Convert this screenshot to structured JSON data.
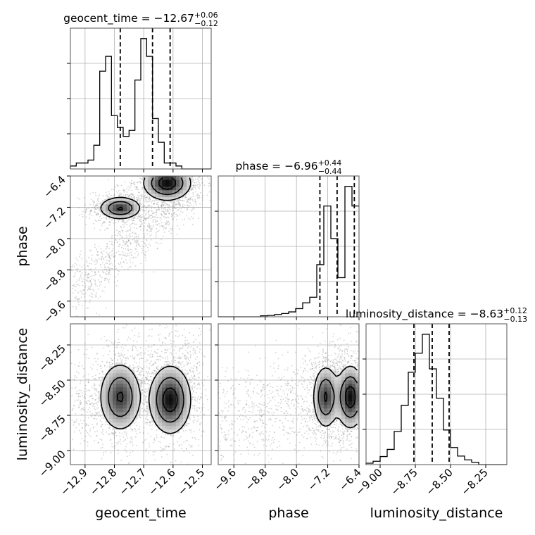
{
  "chart_data": {
    "type": "corner",
    "parameters": [
      {
        "name": "geocent_time",
        "axis_label": "geocent_time",
        "range": [
          -12.95,
          -12.47
        ],
        "ticks": [
          -12.9,
          -12.8,
          -12.7,
          -12.6,
          -12.5
        ],
        "tick_labels": [
          "−12.9",
          "−12.8",
          "−12.7",
          "−12.6",
          "−12.5"
        ],
        "title": {
          "prefix": "geocent_time = ",
          "value": "−12.67",
          "upper": "+0.06",
          "lower": "−0.12"
        },
        "quantiles": [
          -12.78,
          -12.67,
          -12.61
        ],
        "hist": {
          "edges_start": -12.95,
          "bin_width": 0.02,
          "counts": [
            1,
            2,
            2,
            3,
            8,
            33,
            38,
            18,
            14,
            11,
            13,
            30,
            44,
            38,
            17,
            9,
            2,
            2,
            1,
            0,
            0,
            0,
            0,
            0
          ]
        }
      },
      {
        "name": "phase",
        "axis_label": "phase",
        "range": [
          -10.0,
          -6.4
        ],
        "ticks": [
          -9.6,
          -8.8,
          -8.0,
          -7.2,
          -6.4
        ],
        "tick_labels": [
          "−9.6",
          "−8.8",
          "−8.0",
          "−7.2",
          "−6.4"
        ],
        "title": {
          "prefix": "phase = ",
          "value": "−6.96",
          "upper": "+0.44",
          "lower": "−0.44"
        },
        "quantiles": [
          -7.4,
          -6.96,
          -6.52
        ],
        "hist": {
          "edges_start": -10.0,
          "bin_width": 0.18,
          "counts": [
            0,
            0,
            0,
            0,
            0,
            0,
            0.3,
            0.4,
            0.7,
            1,
            1.5,
            2.5,
            4.3,
            6,
            16,
            34,
            24,
            12,
            40,
            34
          ]
        }
      },
      {
        "name": "luminosity_distance",
        "axis_label": "luminosity_distance",
        "range": [
          -9.1,
          -8.1
        ],
        "ticks": [
          -9.0,
          -8.75,
          -8.5,
          -8.25
        ],
        "tick_labels": [
          "−9.00",
          "−8.75",
          "−8.50",
          "−8.25"
        ],
        "title": {
          "prefix": "luminosity_distance = ",
          "value": "−8.63",
          "upper": "+0.12",
          "lower": "−0.13"
        },
        "quantiles": [
          -8.76,
          -8.63,
          -8.51
        ],
        "hist": {
          "edges_start": -9.1,
          "bin_width": 0.05,
          "counts": [
            0.3,
            0.7,
            1.7,
            3.2,
            7,
            12.5,
            19.5,
            23.5,
            27.5,
            20.2,
            14,
            7.3,
            3.6,
            1.8,
            1,
            0.5,
            0,
            0,
            0,
            0
          ]
        }
      }
    ],
    "pairs": [
      {
        "x": "geocent_time",
        "y": "phase",
        "modes": [
          {
            "x": -12.78,
            "y": -7.22,
            "sx": 0.035,
            "sy": 0.14,
            "w": 0.45
          },
          {
            "x": -12.62,
            "y": -6.58,
            "sx": 0.04,
            "sy": 0.22,
            "w": 0.55
          }
        ],
        "background": {
          "x_from": -12.95,
          "x_to": -12.5,
          "y_from": -9.4,
          "y_to": -6.5,
          "spread": 0.35
        }
      },
      {
        "x": "geocent_time",
        "y": "luminosity_distance",
        "modes": [
          {
            "x": -12.78,
            "y": -8.62,
            "sx": 0.035,
            "sy": 0.12,
            "w": 0.45
          },
          {
            "x": -12.61,
            "y": -8.64,
            "sx": 0.035,
            "sy": 0.12,
            "w": 0.55
          }
        ],
        "background": {
          "x_from": -12.95,
          "x_to": -12.5,
          "y_from": -8.7,
          "y_to": -8.4,
          "spread": 0.18
        }
      },
      {
        "x": "phase",
        "y": "luminosity_distance",
        "modes": [
          {
            "x": -7.25,
            "y": -8.62,
            "sx": 0.16,
            "sy": 0.11,
            "w": 0.45
          },
          {
            "x": -6.62,
            "y": -8.62,
            "sx": 0.18,
            "sy": 0.11,
            "w": 0.55
          }
        ],
        "background": {
          "x_from": -10.0,
          "x_to": -6.4,
          "y_from": -8.8,
          "y_to": -8.5,
          "spread": 0.18
        }
      }
    ],
    "grid": true,
    "hist_style": "step",
    "quantile_style": "dashed",
    "contour_levels": 3
  },
  "colors": {
    "line": "#000000",
    "grid": "#b0b0b0",
    "scatter": "#808080",
    "background": "#ffffff"
  }
}
